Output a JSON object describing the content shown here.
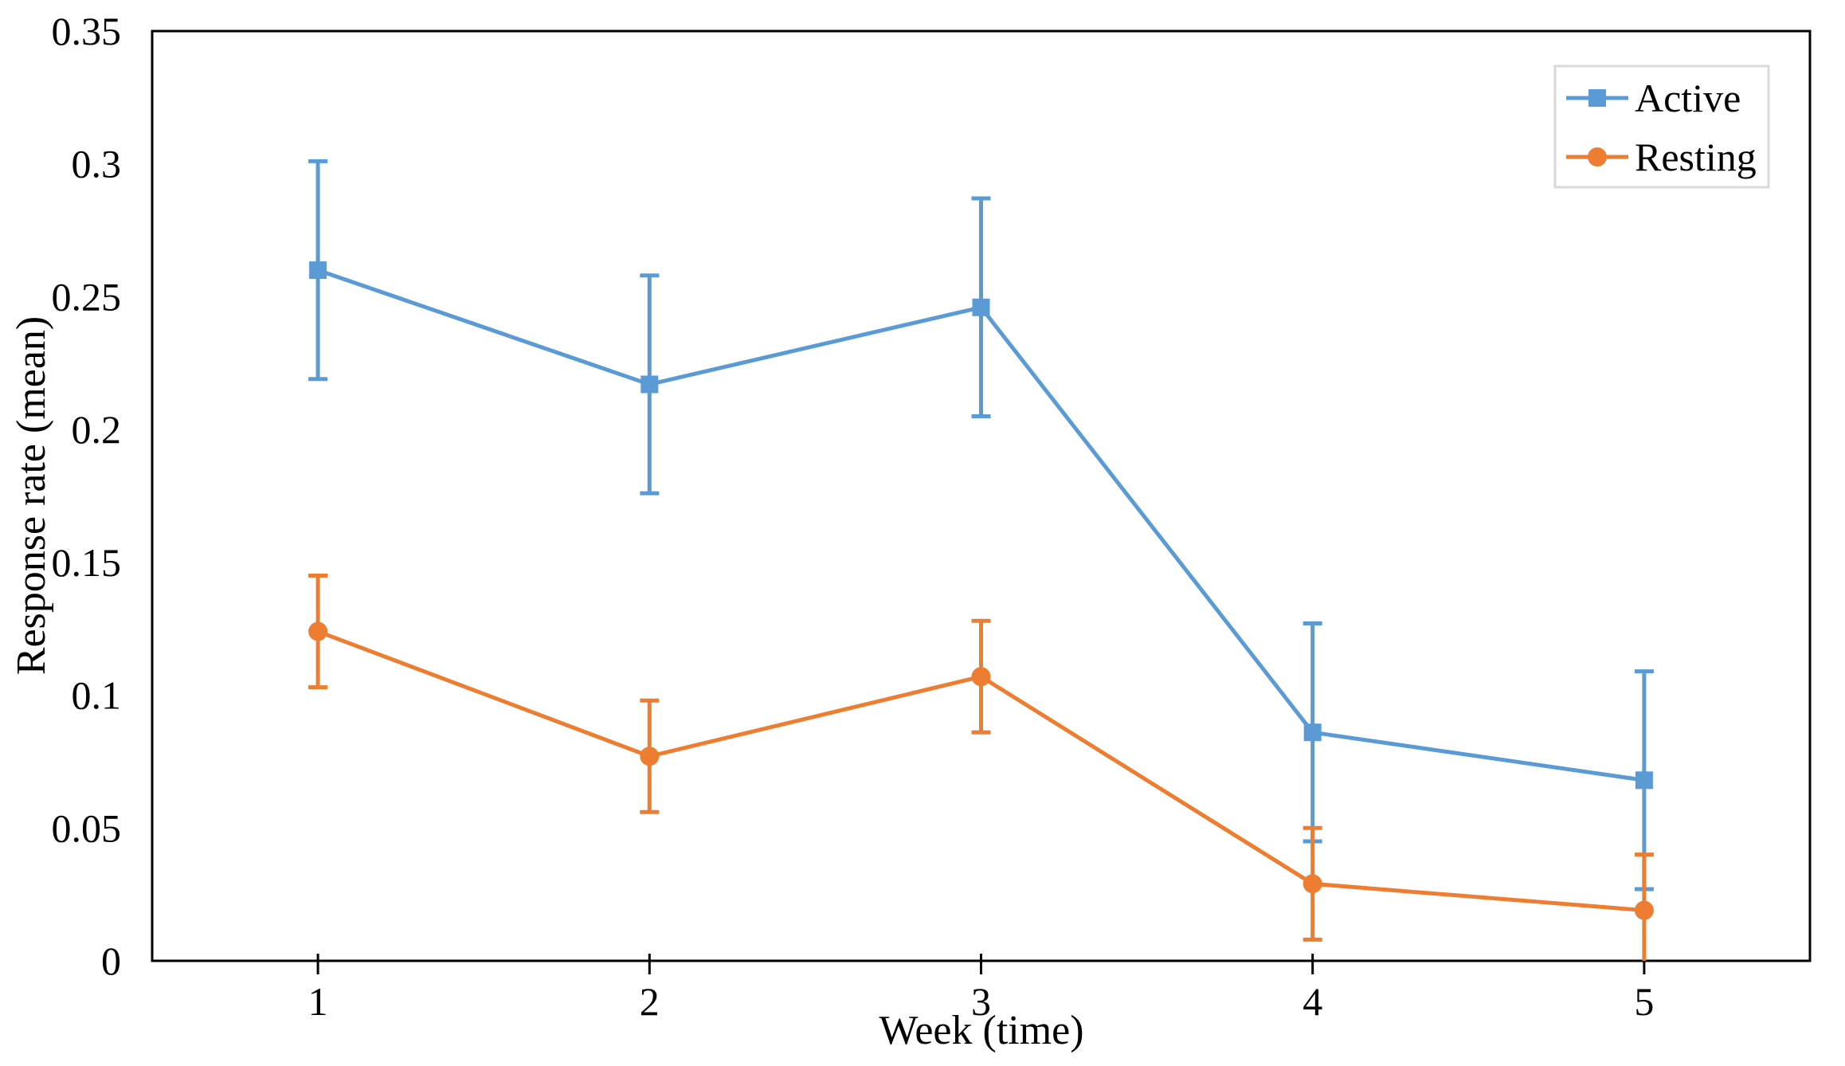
{
  "chart_data": {
    "type": "line",
    "title": "",
    "xlabel": "Week (time)",
    "ylabel": "Response rate (mean)",
    "x": [
      1,
      2,
      3,
      4,
      5
    ],
    "x_tick_labels": [
      "1",
      "2",
      "3",
      "4",
      "5"
    ],
    "y_ticks": [
      0,
      0.05,
      0.1,
      0.15,
      0.2,
      0.25,
      0.3,
      0.35
    ],
    "y_tick_labels": [
      "0",
      "0.05",
      "0.1",
      "0.15",
      "0.2",
      "0.25",
      "0.3",
      "0.35"
    ],
    "ylim": [
      0,
      0.35
    ],
    "grid": false,
    "error_bars": true,
    "legend_position": "top-right-inside",
    "series": [
      {
        "name": "Active",
        "marker": "square",
        "color": "#5B9BD5",
        "values": [
          0.26,
          0.217,
          0.246,
          0.086,
          0.068
        ],
        "error": [
          0.041,
          0.041,
          0.041,
          0.041,
          0.041
        ]
      },
      {
        "name": "Resting",
        "marker": "circle",
        "color": "#ED7D31",
        "values": [
          0.124,
          0.077,
          0.107,
          0.029,
          0.019
        ],
        "error": [
          0.021,
          0.021,
          0.021,
          0.021,
          0.021
        ]
      }
    ]
  },
  "colors": {
    "axis": "#000000",
    "legend_border": "#D9D9D9",
    "background": "#FFFFFF"
  }
}
